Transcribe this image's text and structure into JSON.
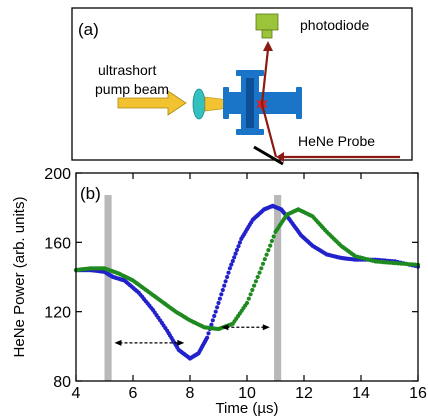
{
  "panel_a": {
    "label": "(a)",
    "photodiode_label": "photodiode",
    "pump_label_line1": "ultrashort",
    "pump_label_line2": "pump beam",
    "probe_label": "HeNe Probe",
    "colors": {
      "pump_beam": "#f2c230",
      "probe_beam": "#8b1a12",
      "chamber": "#1a74c8",
      "lens": "#35c0c0",
      "photodiode": "#9bc43a",
      "mirror": "#000000",
      "spark": "#e02020"
    }
  },
  "panel_b": {
    "label": "(b)",
    "ylabel": "HeNe Power (arb. units)",
    "xlabel": "Time (µs)",
    "colors": {
      "blue_series": "#2222cc",
      "green_series": "#1f8a1f",
      "gray_bar": "#b8b8b8",
      "arrow": "#000000"
    }
  },
  "chart_data": {
    "type": "scatter",
    "title": "",
    "xlabel": "Time (µs)",
    "ylabel": "HeNe Power (arb. units)",
    "xlim": [
      4,
      16
    ],
    "ylim": [
      80,
      200
    ],
    "xticks": [
      4,
      6,
      8,
      10,
      12,
      14,
      16
    ],
    "yticks": [
      80,
      120,
      160,
      200
    ],
    "grid": false,
    "series": [
      {
        "color": "#2222cc",
        "x": [
          4.0,
          4.5,
          5.0,
          5.3,
          5.7,
          6.2,
          6.7,
          7.2,
          7.6,
          8.0,
          8.3,
          8.6,
          9.0,
          9.4,
          9.8,
          10.2,
          10.6,
          10.9,
          11.2,
          11.5,
          11.9,
          12.3,
          12.8,
          13.3,
          13.8,
          14.5,
          15.2,
          16.0
        ],
        "y": [
          144,
          144,
          143,
          140,
          138,
          131,
          121,
          109,
          98,
          93,
          96,
          105,
          125,
          145,
          162,
          173,
          179,
          181,
          179,
          173,
          164,
          158,
          153,
          151,
          150,
          150,
          149,
          146
        ]
      },
      {
        "color": "#1f8a1f",
        "x": [
          4.0,
          4.5,
          5.0,
          5.5,
          6.0,
          6.5,
          7.0,
          7.5,
          8.0,
          8.5,
          9.0,
          9.5,
          10.0,
          10.5,
          11.0,
          11.4,
          11.8,
          12.3,
          12.8,
          13.3,
          13.8,
          14.5,
          15.2,
          16.0
        ],
        "y": [
          144,
          145,
          145,
          142,
          138,
          132,
          126,
          120,
          115,
          111,
          110,
          113,
          125,
          145,
          166,
          176,
          179,
          175,
          166,
          158,
          152,
          149,
          148,
          147
        ]
      }
    ],
    "highlights": [
      {
        "x_from": 5.0,
        "x_to": 5.25
      },
      {
        "x_from": 10.95,
        "x_to": 11.2
      }
    ],
    "arrows": [
      {
        "x_from": 5.35,
        "x_to": 7.8,
        "y": 102
      },
      {
        "x_from": 9.1,
        "x_to": 10.8,
        "y": 111
      }
    ]
  }
}
